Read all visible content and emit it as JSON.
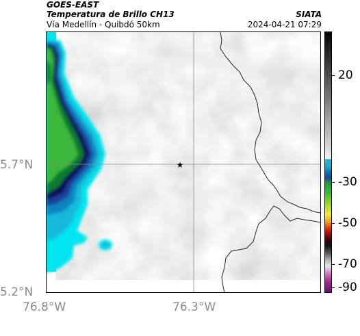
{
  "header": {
    "product": "GOES-EAST",
    "title": "Temperatura de Brillo CH13",
    "source": "SIATA",
    "subtitle": "Vía Medellín - Quibdó 50km",
    "timestamp": "2024-04-21 07:29"
  },
  "axes": {
    "lat_labels": [
      "5.2°N",
      "5.7°N"
    ],
    "lon_labels": [
      "76.8°W",
      "76.3°W"
    ]
  },
  "colorbar": {
    "tick_labels": [
      "20",
      "-30",
      "-50",
      "-70",
      "-90"
    ],
    "colors": {
      "warm": "#f6f6f6",
      "cyan": "#2ab8d8",
      "blue": "#22409a",
      "green": "#33c033",
      "yellow": "#f0f030",
      "red": "#e04010",
      "dark": "#101010",
      "magenta": "#a02a90"
    }
  },
  "map": {
    "marker_icon": "star-icon",
    "cloud_colors": [
      "#00e5ef",
      "#19b9d9",
      "#0d85c2",
      "#1c3f98",
      "#11104f",
      "#0f7a33",
      "#3ab73a"
    ]
  }
}
